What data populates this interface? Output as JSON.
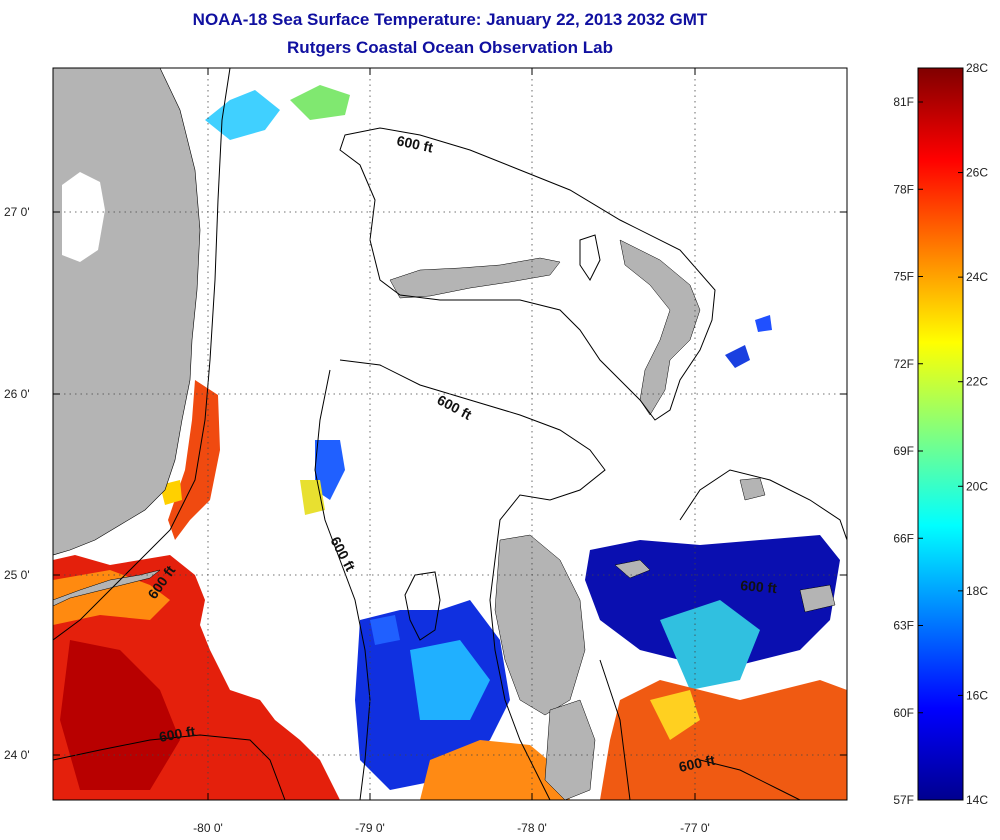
{
  "title": "NOAA-18 Sea Surface Temperature:  January 22, 2013 2032 GMT",
  "subtitle": "Rutgers Coastal Ocean Observation Lab",
  "map": {
    "lon_labels": [
      "-80 0'",
      "-79 0'",
      "-78 0'",
      "-77 0'"
    ],
    "lat_labels": [
      "27 0'",
      "26 0'",
      "25 0'",
      "24 0'"
    ],
    "contour_labels": [
      "600 ft",
      "600 ft",
      "600 ft",
      "600 ft",
      "600 ft",
      "600 ft"
    ],
    "colors": {
      "land": "#b4b4b4",
      "ocean_nodata": "#ffffff",
      "frame": "#000000",
      "grid": "#555555"
    }
  },
  "colorbar": {
    "celsius": [
      "28C",
      "26C",
      "24C",
      "22C",
      "20C",
      "18C",
      "16C",
      "14C"
    ],
    "fahrenheit": [
      "81F",
      "78F",
      "75F",
      "72F",
      "69F",
      "66F",
      "63F",
      "60F",
      "57F"
    ],
    "colormap": [
      "#00008f",
      "#0000ff",
      "#0080ff",
      "#00ffff",
      "#80ff80",
      "#ffff00",
      "#ff8000",
      "#ff0000",
      "#800000"
    ]
  }
}
